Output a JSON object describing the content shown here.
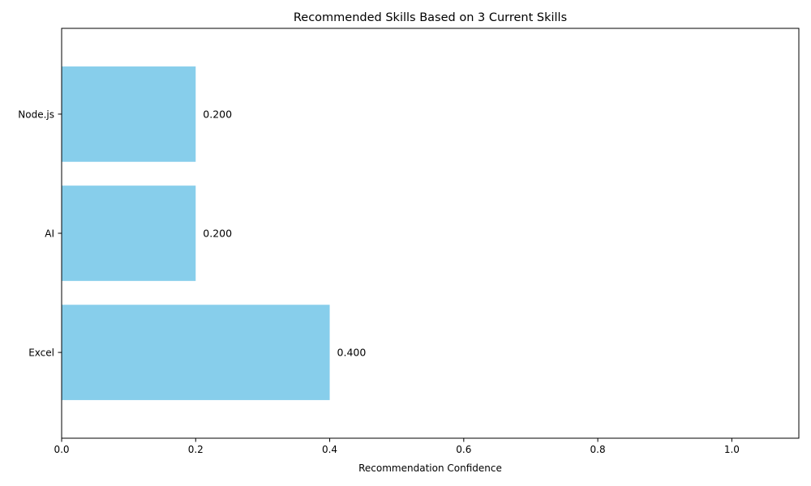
{
  "chart_data": {
    "type": "bar",
    "orientation": "horizontal",
    "title": "Recommended Skills Based on 3 Current Skills",
    "xlabel": "Recommendation Confidence",
    "ylabel": "",
    "categories": [
      "Excel",
      "AI",
      "Node.js"
    ],
    "values": [
      0.4,
      0.2,
      0.2
    ],
    "value_labels": [
      "0.400",
      "0.200",
      "0.200"
    ],
    "xlim": [
      0,
      1.1
    ],
    "xticks": [
      0.0,
      0.2,
      0.4,
      0.6,
      0.8,
      1.0
    ],
    "xtick_labels": [
      "0.0",
      "0.2",
      "0.4",
      "0.6",
      "0.8",
      "1.0"
    ],
    "grid": false,
    "legend": "none",
    "bar_color": "#87CEEB",
    "axis_color": "#000000"
  }
}
